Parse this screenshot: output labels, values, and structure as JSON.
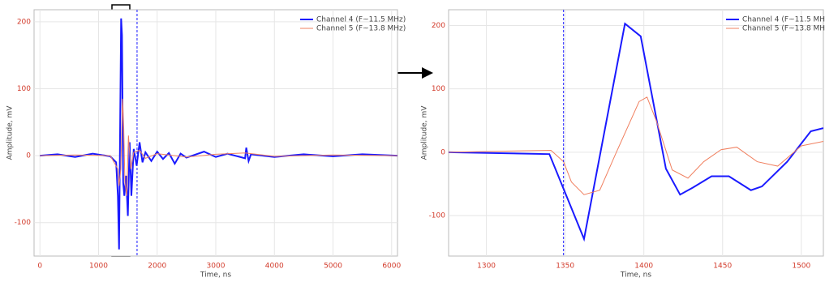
{
  "chart_data": [
    {
      "type": "line",
      "xlabel": "Time, ns",
      "ylabel": "Amplitude, mV",
      "xlim": [
        -100,
        6100
      ],
      "ylim": [
        -150,
        218
      ],
      "xticks": [
        0,
        1000,
        2000,
        3000,
        4000,
        5000,
        6000
      ],
      "yticks": [
        -100,
        0,
        100,
        200
      ],
      "cursors": [
        1657
      ],
      "grid": true,
      "legend": "upper right",
      "series": [
        {
          "name": "Channel 4 (F~11.5 MHz)",
          "color": "#1a1aff",
          "x": [
            0,
            300,
            600,
            900,
            1200,
            1300,
            1330,
            1350,
            1370,
            1385,
            1400,
            1420,
            1440,
            1470,
            1500,
            1530,
            1560,
            1600,
            1650,
            1700,
            1750,
            1800,
            1900,
            2000,
            2100,
            2200,
            2300,
            2400,
            2500,
            2800,
            3000,
            3200,
            3500,
            3520,
            3560,
            3600,
            4000,
            4500,
            5000,
            5500,
            6100
          ],
          "values": [
            0,
            2,
            -2,
            3,
            -1,
            -10,
            -60,
            -140,
            60,
            205,
            180,
            -40,
            -60,
            -30,
            -90,
            20,
            -60,
            10,
            -15,
            20,
            -10,
            5,
            -8,
            6,
            -5,
            4,
            -12,
            3,
            -3,
            6,
            -2,
            3,
            -4,
            12,
            -8,
            2,
            -2,
            2,
            -1,
            2,
            0
          ]
        },
        {
          "name": "Channel 5 (F~13.8 MHz)",
          "color": "#f08060",
          "x": [
            0,
            600,
            1200,
            1330,
            1350,
            1380,
            1410,
            1430,
            1450,
            1480,
            1510,
            1550,
            1600,
            1700,
            1800,
            2000,
            2500,
            3000,
            3500,
            4000,
            5000,
            6100
          ],
          "values": [
            0,
            1,
            0,
            -20,
            -45,
            -20,
            85,
            40,
            -40,
            -60,
            30,
            -20,
            5,
            8,
            -4,
            3,
            -2,
            2,
            4,
            -1,
            1,
            0
          ]
        }
      ]
    },
    {
      "type": "line",
      "xlabel": "Time, ns",
      "ylabel": "Amplitude, mV",
      "xlim": [
        1276,
        1514
      ],
      "ylim": [
        -164,
        225
      ],
      "xticks": [
        1300,
        1350,
        1400,
        1450,
        1500
      ],
      "yticks": [
        -100,
        0,
        100,
        200
      ],
      "cursors": [
        1349
      ],
      "grid": true,
      "legend": "upper right",
      "series": [
        {
          "name": "Channel 4 (F~11.5 MHz)",
          "color": "#1a1aff",
          "x": [
            1276,
            1340,
            1362,
            1388,
            1398,
            1414,
            1423,
            1431,
            1443,
            1454,
            1468,
            1475,
            1491,
            1506,
            1514
          ],
          "values": [
            0,
            -3,
            -137,
            203,
            183,
            -26,
            -67,
            -56,
            -38,
            -38,
            -60,
            -54,
            -15,
            33,
            38
          ]
        },
        {
          "name": "Channel 5 (F~13.8 MHz)",
          "color": "#f08060",
          "x": [
            1276,
            1341,
            1349,
            1354,
            1362,
            1372,
            1382,
            1397,
            1402,
            1408,
            1418,
            1428,
            1438,
            1449,
            1459,
            1472,
            1485,
            1500,
            1514
          ],
          "values": [
            0,
            3,
            -15,
            -47,
            -67,
            -60,
            -3,
            80,
            87,
            49,
            -28,
            -41,
            -15,
            4,
            8,
            -15,
            -22,
            10,
            17
          ]
        }
      ]
    }
  ]
}
